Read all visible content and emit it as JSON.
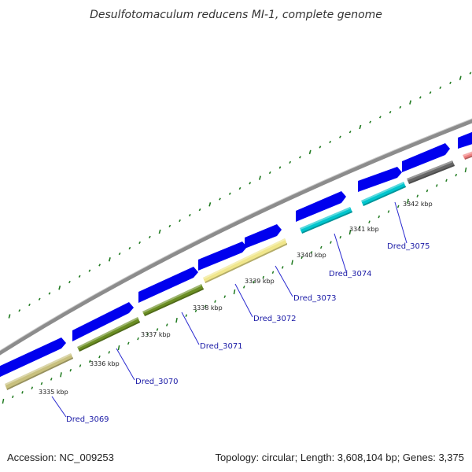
{
  "title": "Desulfotomaculum reducens MI-1, complete genome",
  "footer": {
    "accession": "Accession: NC_009253",
    "summary": "Topology: circular; Length: 3,608,104 bp; Genes: 3,375"
  },
  "colors": {
    "cds_forward": "#0000ee",
    "backbone": "#8c8c8c",
    "tick": "#1f7a1f",
    "label_line": "#2a2ad0"
  },
  "kbp_labels": [
    "3335 kbp",
    "3336 kbp",
    "3337 kbp",
    "3338 kbp",
    "3339 kbp",
    "3340 kbp",
    "3341 kbp",
    "3342 kbp"
  ],
  "genes": [
    {
      "label": "Dred_3069",
      "color": "#c8c07e"
    },
    {
      "label": "Dred_3070",
      "color": "#6b8e23"
    },
    {
      "label": "Dred_3071",
      "color": "#6b8e23"
    },
    {
      "label": "Dred_3072",
      "color": "#f0e68c"
    },
    {
      "label": "Dred_3073",
      "color": "#f0e68c"
    },
    {
      "label": "Dred_3074",
      "color": "#00c5cd"
    },
    {
      "label": "Dred_3075",
      "color": "#00c5cd"
    },
    {
      "label": "",
      "color": "#666666"
    },
    {
      "label": "",
      "color": "#f08080"
    }
  ]
}
